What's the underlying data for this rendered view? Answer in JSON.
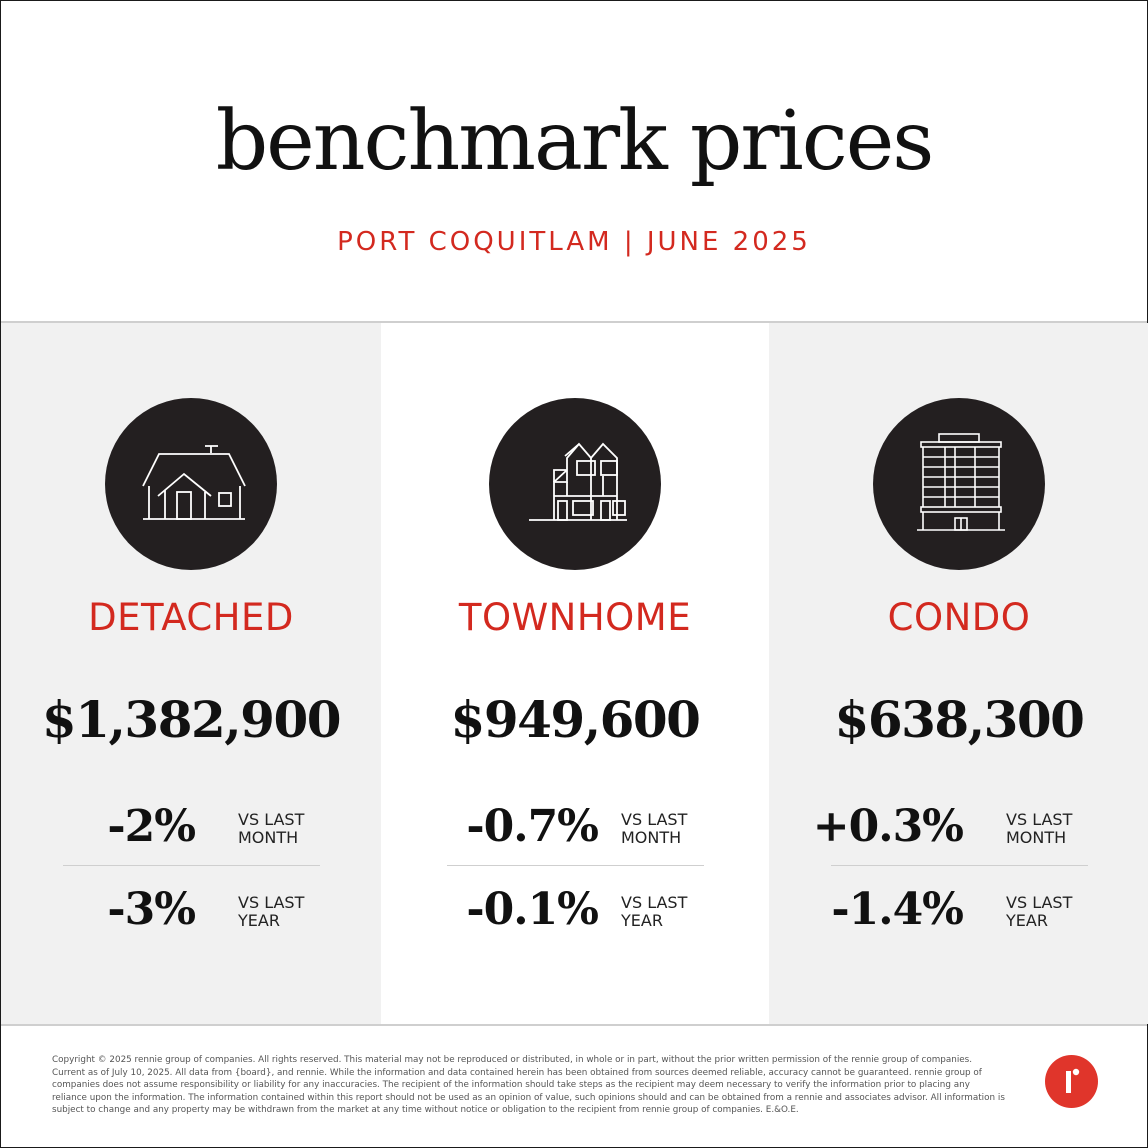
{
  "header": {
    "title": "benchmark prices",
    "subtitle": "PORT COQUITLAM | JUNE 2025"
  },
  "colors": {
    "accent": "#d3291f",
    "icon_circle": "#231f20",
    "panel_gray": "#f1f1f1",
    "logo": "#e0352b"
  },
  "panels": [
    {
      "icon": "detached-house-icon",
      "type": "DETACHED",
      "price": "$1,382,900",
      "month_change": "-2%",
      "month_label_1": "VS LAST",
      "month_label_2": "MONTH",
      "year_change": "-3%",
      "year_label_1": "VS LAST",
      "year_label_2": "YEAR"
    },
    {
      "icon": "townhome-icon",
      "type": "TOWNHOME",
      "price": "$949,600",
      "month_change": "-0.7%",
      "month_label_1": "VS LAST",
      "month_label_2": "MONTH",
      "year_change": "-0.1%",
      "year_label_1": "VS LAST",
      "year_label_2": "YEAR"
    },
    {
      "icon": "condo-building-icon",
      "type": "CONDO",
      "price": "$638,300",
      "month_change": "+0.3%",
      "month_label_1": "VS LAST",
      "month_label_2": "MONTH",
      "year_change": "-1.4%",
      "year_label_1": "VS LAST",
      "year_label_2": "YEAR"
    }
  ],
  "footer": {
    "disclaimer": "Copyright © 2025 rennie group of companies. All rights reserved. This material may not be reproduced or distributed, in whole or in part, without the prior written permission of the rennie group of companies. Current as of July 10, 2025. All data from {board}, and rennie. While the information and data contained herein has been obtained from sources deemed reliable, accuracy cannot be guaranteed. rennie group of companies does not assume responsibility or liability for any inaccuracies. The recipient of the information should take steps as the recipient may deem necessary to verify the information prior to placing any reliance upon the information. The information contained within this report should not be used as an opinion of value, such opinions should and can be obtained from a rennie and associates advisor. All information is subject to change and any property may be withdrawn from the market at any time without notice or obligation to the recipient from rennie group of companies. E.&O.E.",
    "logo": "rennie-logo-icon"
  }
}
